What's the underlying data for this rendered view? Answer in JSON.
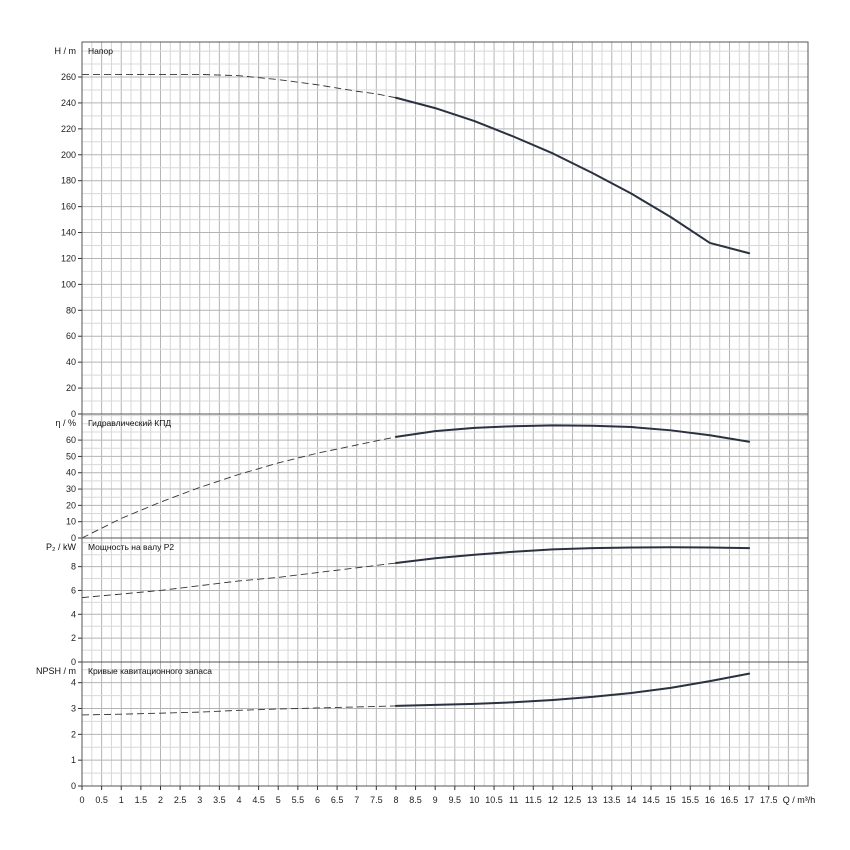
{
  "x_axis": {
    "label": "Q / m³/h",
    "min": 0,
    "max": 18.5,
    "major_step": 0.5,
    "minor_step": 0.25,
    "tick_labels": [
      "0",
      "0.5",
      "1",
      "1.5",
      "2",
      "2.5",
      "3",
      "3.5",
      "4",
      "4.5",
      "5",
      "5.5",
      "6",
      "6.5",
      "7",
      "7.5",
      "8",
      "8.5",
      "9",
      "9.5",
      "10",
      "10.5",
      "11",
      "11.5",
      "12",
      "12.5",
      "13",
      "13.5",
      "14",
      "14.5",
      "15",
      "15.5",
      "16",
      "16.5",
      "17",
      "17.5"
    ]
  },
  "chart_data": [
    {
      "type": "line",
      "title": "Напор",
      "ylabel": "H / m",
      "ylim": [
        0,
        287
      ],
      "yticks": [
        0,
        20,
        40,
        60,
        80,
        100,
        120,
        140,
        160,
        180,
        200,
        220,
        240,
        260
      ],
      "y_minor_step": 10,
      "grid": true,
      "dashed_until_x": 8,
      "series": [
        {
          "x": [
            0,
            1,
            2,
            3,
            3.5,
            4,
            5,
            6,
            7,
            7.5,
            8,
            9,
            10,
            11,
            12,
            13,
            14,
            15,
            16,
            17
          ],
          "y": [
            262,
            262,
            262,
            262,
            261.5,
            261,
            258,
            254,
            249,
            247,
            244,
            236,
            226,
            214,
            201,
            186,
            170,
            152,
            132,
            124
          ]
        }
      ]
    },
    {
      "type": "line",
      "title": "Гидравлический КПД",
      "ylabel": "η / %",
      "ylim": [
        0,
        76
      ],
      "yticks": [
        0,
        10,
        20,
        30,
        40,
        50,
        60
      ],
      "y_minor_step": 5,
      "grid": true,
      "dashed_until_x": 8,
      "series": [
        {
          "x": [
            0,
            1,
            2,
            3,
            4,
            5,
            6,
            7,
            8,
            9,
            10,
            11,
            12,
            13,
            14,
            15,
            16,
            17
          ],
          "y": [
            0,
            12,
            22,
            31,
            39,
            46,
            52,
            57,
            62,
            65.5,
            67.5,
            68.5,
            69,
            68.8,
            68,
            66,
            63,
            59
          ]
        }
      ]
    },
    {
      "type": "line",
      "title": "Мощность на валу P2",
      "ylabel": "P₂ / kW",
      "ylim": [
        0,
        10.4
      ],
      "yticks": [
        0,
        2,
        4,
        6,
        8
      ],
      "y_minor_step": 1,
      "grid": true,
      "dashed_until_x": 8,
      "series": [
        {
          "x": [
            0,
            1,
            2,
            3,
            4,
            5,
            6,
            7,
            8,
            9,
            10,
            11,
            12,
            13,
            14,
            15,
            16,
            17
          ],
          "y": [
            5.4,
            5.7,
            6.0,
            6.4,
            6.8,
            7.1,
            7.5,
            7.9,
            8.3,
            8.7,
            9.0,
            9.25,
            9.45,
            9.55,
            9.6,
            9.62,
            9.6,
            9.55
          ]
        }
      ]
    },
    {
      "type": "line",
      "title": "Кривые кавитационного запаса",
      "ylabel": "NPSH / m",
      "ylim": [
        0,
        4.8
      ],
      "yticks": [
        0,
        1,
        2,
        3,
        4
      ],
      "y_minor_step": 0.5,
      "grid": true,
      "dashed_until_x": 8,
      "series": [
        {
          "x": [
            0,
            1,
            2,
            3,
            4,
            5,
            6,
            7,
            8,
            9,
            10,
            11,
            12,
            13,
            14,
            15,
            16,
            17
          ],
          "y": [
            2.75,
            2.78,
            2.82,
            2.86,
            2.93,
            2.98,
            3.02,
            3.06,
            3.1,
            3.14,
            3.18,
            3.24,
            3.33,
            3.45,
            3.6,
            3.8,
            4.06,
            4.35
          ]
        }
      ]
    }
  ]
}
